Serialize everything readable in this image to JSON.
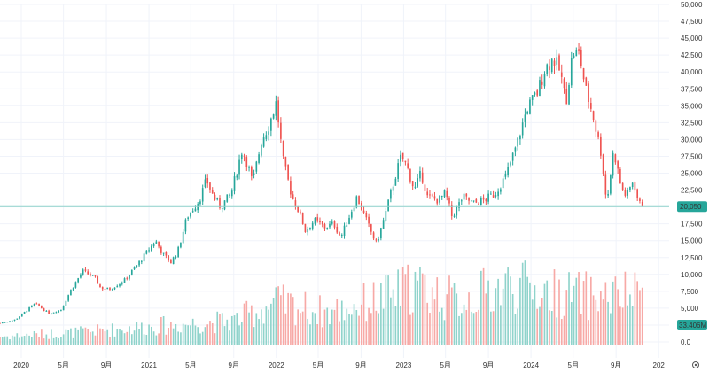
{
  "chart_data": {
    "type": "candlestick",
    "price_axis": {
      "min": 0,
      "max": 50000,
      "ticks": [
        "50,000",
        "47,500",
        "45,000",
        "42,500",
        "40,000",
        "37,500",
        "35,000",
        "32,500",
        "30,000",
        "27,500",
        "25,000",
        "22,500",
        "20,000",
        "17,500",
        "15,000",
        "12,500",
        "10,000",
        "7,500",
        "5,000",
        "2,500",
        "0.0"
      ]
    },
    "x_axis": {
      "start": "2019-11-01",
      "end": "2025-01-31",
      "ticks": [
        {
          "label": "2020",
          "date": "2020-01-01"
        },
        {
          "label": "5月",
          "date": "2020-05-01"
        },
        {
          "label": "9月",
          "date": "2020-09-01"
        },
        {
          "label": "2021",
          "date": "2021-01-01"
        },
        {
          "label": "5月",
          "date": "2021-05-01"
        },
        {
          "label": "9月",
          "date": "2021-09-01"
        },
        {
          "label": "2022",
          "date": "2022-01-01"
        },
        {
          "label": "5月",
          "date": "2022-05-01"
        },
        {
          "label": "9月",
          "date": "2022-09-01"
        },
        {
          "label": "2023",
          "date": "2023-01-01"
        },
        {
          "label": "5月",
          "date": "2023-05-01"
        },
        {
          "label": "9月",
          "date": "2023-09-01"
        },
        {
          "label": "2024",
          "date": "2024-01-01"
        },
        {
          "label": "5月",
          "date": "2024-05-01"
        },
        {
          "label": "9月",
          "date": "2024-09-01"
        },
        {
          "label": "202",
          "date": "2025-01-01"
        }
      ]
    },
    "last_price": 20050,
    "last_price_label": "20,050",
    "last_volume_label": "33.406M",
    "price_path": [
      [
        "2019-11-01",
        2800
      ],
      [
        "2019-12-15",
        3300
      ],
      [
        "2020-02-10",
        5700
      ],
      [
        "2020-03-20",
        4200
      ],
      [
        "2020-04-25",
        4800
      ],
      [
        "2020-05-20",
        7500
      ],
      [
        "2020-06-25",
        10500
      ],
      [
        "2020-07-30",
        9500
      ],
      [
        "2020-08-15",
        8000
      ],
      [
        "2020-09-10",
        7800
      ],
      [
        "2020-10-20",
        9000
      ],
      [
        "2020-11-30",
        11500
      ],
      [
        "2021-01-05",
        14000
      ],
      [
        "2021-01-20",
        15000
      ],
      [
        "2021-02-10",
        13000
      ],
      [
        "2021-03-05",
        11800
      ],
      [
        "2021-03-25",
        13500
      ],
      [
        "2021-04-20",
        18500
      ],
      [
        "2021-05-25",
        21000
      ],
      [
        "2021-06-15",
        24000
      ],
      [
        "2021-07-05",
        21500
      ],
      [
        "2021-07-25",
        20000
      ],
      [
        "2021-08-25",
        22000
      ],
      [
        "2021-09-25",
        28500
      ],
      [
        "2021-10-10",
        26500
      ],
      [
        "2021-10-25",
        23500
      ],
      [
        "2021-11-20",
        30000
      ],
      [
        "2021-12-10",
        32000
      ],
      [
        "2022-01-01",
        35500
      ],
      [
        "2022-01-20",
        27000
      ],
      [
        "2022-02-15",
        21500
      ],
      [
        "2022-03-10",
        19000
      ],
      [
        "2022-03-25",
        16500
      ],
      [
        "2022-04-20",
        18000
      ],
      [
        "2022-05-20",
        17000
      ],
      [
        "2022-06-15",
        17500
      ],
      [
        "2022-07-05",
        15500
      ],
      [
        "2022-08-01",
        19000
      ],
      [
        "2022-08-20",
        21500
      ],
      [
        "2022-09-20",
        17500
      ],
      [
        "2022-10-15",
        14500
      ],
      [
        "2022-11-10",
        19000
      ],
      [
        "2022-12-05",
        24000
      ],
      [
        "2022-12-25",
        27500
      ],
      [
        "2023-01-10",
        26000
      ],
      [
        "2023-02-01",
        22500
      ],
      [
        "2023-02-20",
        25000
      ],
      [
        "2023-03-10",
        21500
      ],
      [
        "2023-04-10",
        21000
      ],
      [
        "2023-05-01",
        22000
      ],
      [
        "2023-05-20",
        18500
      ],
      [
        "2023-06-20",
        21500
      ],
      [
        "2023-07-20",
        20500
      ],
      [
        "2023-08-20",
        21000
      ],
      [
        "2023-09-20",
        22000
      ],
      [
        "2023-10-20",
        24500
      ],
      [
        "2023-11-20",
        29000
      ],
      [
        "2023-12-20",
        34500
      ],
      [
        "2024-01-20",
        37000
      ],
      [
        "2024-02-10",
        40500
      ],
      [
        "2024-03-05",
        42000
      ],
      [
        "2024-03-25",
        40000
      ],
      [
        "2024-04-10",
        35500
      ],
      [
        "2024-04-30",
        43000
      ],
      [
        "2024-05-20",
        42500
      ],
      [
        "2024-06-05",
        37500
      ],
      [
        "2024-06-25",
        34000
      ],
      [
        "2024-07-20",
        28000
      ],
      [
        "2024-08-05",
        20500
      ],
      [
        "2024-08-25",
        28500
      ],
      [
        "2024-09-15",
        23000
      ],
      [
        "2024-10-01",
        21500
      ],
      [
        "2024-10-20",
        24000
      ],
      [
        "2024-11-05",
        20500
      ],
      [
        "2024-11-20",
        20050
      ]
    ],
    "volume_path": [
      [
        "2019-11-01",
        0.4
      ],
      [
        "2020-06-01",
        0.6
      ],
      [
        "2021-01-01",
        0.9
      ],
      [
        "2021-09-01",
        1.2
      ],
      [
        "2022-01-01",
        2.1
      ],
      [
        "2022-06-01",
        1.6
      ],
      [
        "2022-12-01",
        2.5
      ],
      [
        "2023-02-01",
        3.0
      ],
      [
        "2023-06-01",
        2.2
      ],
      [
        "2023-11-01",
        3.0
      ],
      [
        "2024-03-01",
        2.6
      ],
      [
        "2024-08-01",
        2.4
      ],
      [
        "2024-11-20",
        2.5
      ]
    ],
    "colors": {
      "up": "#26a69a",
      "down": "#ef5350",
      "up_volume": "#8fd3cb",
      "down_volume": "#f7a9a6",
      "last_price_tag": "#26a69a",
      "last_price_line": "#8fd3cb",
      "grid": "#f0f3fa"
    }
  }
}
